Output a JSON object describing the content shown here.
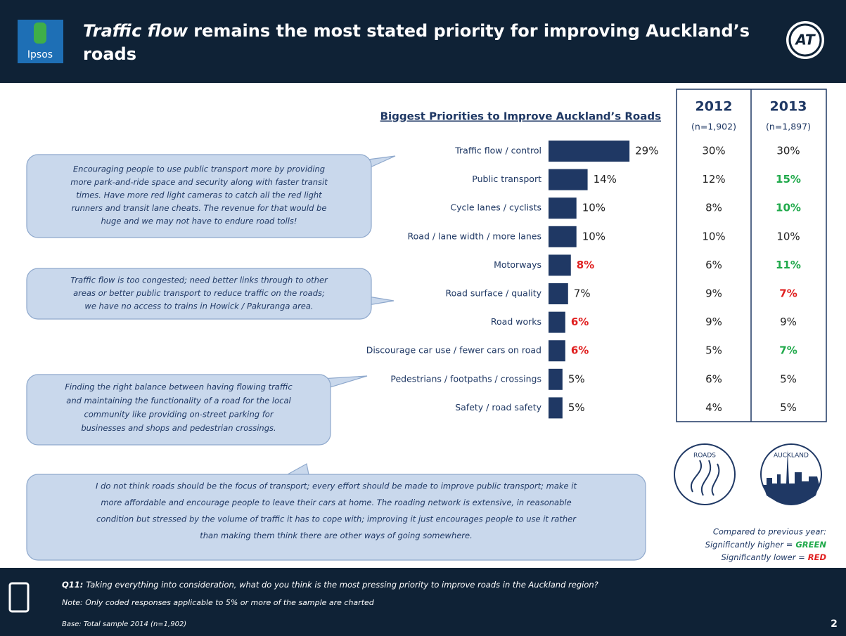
{
  "header": {
    "title_emphasis": "Traffic flow",
    "title_line1": "remains the most stated priority for improving Auckland’s",
    "title_line2": "roads",
    "logo": "Ipsos",
    "brand": "AT"
  },
  "chart_data": {
    "type": "bar",
    "orientation": "horizontal",
    "title": "Biggest Priorities to Improve Auckland’s Roads",
    "categories": [
      "Traffic flow / control",
      "Public transport",
      "Cycle lanes / cyclists",
      "Road / lane width / more lanes",
      "Motorways",
      "Road surface / quality",
      "Road works",
      "Discourage car use / fewer cars on road",
      "Pedestrians / footpaths / crossings",
      "Safety / road safety"
    ],
    "values": [
      29,
      14,
      10,
      10,
      8,
      7,
      6,
      6,
      5,
      5
    ],
    "value_labels": [
      "29%",
      "14%",
      "10%",
      "10%",
      "8%",
      "7%",
      "6%",
      "6%",
      "5%",
      "5%"
    ],
    "value_label_colors": [
      "#222222",
      "#222222",
      "#222222",
      "#222222",
      "#e02020",
      "#222222",
      "#e02020",
      "#e02020",
      "#222222",
      "#222222"
    ],
    "color": "#1f3864"
  },
  "table": {
    "columns": [
      {
        "year": "2012",
        "base": "(n=1,902)",
        "values": [
          "30%",
          "12%",
          "8%",
          "10%",
          "6%",
          "9%",
          "9%",
          "5%",
          "6%",
          "4%"
        ],
        "colors": [
          "#222222",
          "#222222",
          "#222222",
          "#222222",
          "#222222",
          "#222222",
          "#222222",
          "#222222",
          "#222222",
          "#222222"
        ]
      },
      {
        "year": "2013",
        "base": "(n=1,897)",
        "values": [
          "30%",
          "15%",
          "10%",
          "10%",
          "11%",
          "7%",
          "9%",
          "7%",
          "5%",
          "5%"
        ],
        "colors": [
          "#222222",
          "#1fa94a",
          "#1fa94a",
          "#222222",
          "#1fa94a",
          "#e02020",
          "#222222",
          "#1fa94a",
          "#222222",
          "#222222"
        ]
      }
    ]
  },
  "quotes": [
    {
      "lines": [
        "Encouraging people to use public transport more by providing",
        "more park-and-ride space and security along with faster transit",
        "times. Have more red light cameras to catch all the red light",
        "runners and transit lane cheats. The revenue for that would be",
        "huge and we may not have to endure road tolls!"
      ]
    },
    {
      "lines": [
        "Traffic flow is too congested; need better links through to other",
        "areas or better public transport to reduce traffic on the roads;",
        "we have no access to trains in Howick / Pakuranga area."
      ]
    },
    {
      "lines": [
        "Finding the right balance between having flowing traffic",
        "and maintaining the functionality of a road for the local",
        "community like providing on-street parking for",
        "businesses and shops and pedestrian crossings."
      ]
    },
    {
      "lines": [
        "I do not think roads should be the focus of transport; every effort should be made to improve public transport; make it",
        "more affordable and encourage people to leave their cars at home. The roading network is extensive, in reasonable",
        "condition but stressed by the volume of traffic it has to cope with; improving it just encourages people to use it rather",
        "than making them think there are other ways of going somewhere."
      ]
    }
  ],
  "icons": [
    "ROADS",
    "AUCKLAND"
  ],
  "legend": {
    "intro": "Compared to previous year:",
    "higher": "Significantly higher =",
    "higher_word": "GREEN",
    "lower": "Significantly lower =",
    "lower_word": "RED"
  },
  "footer": {
    "q_label": "Q11:",
    "q_text": "Taking everything into consideration, what do you think is the most pressing priority to improve roads in the Auckland region?",
    "note": "Note: Only coded responses applicable to 5% or more of the sample are charted",
    "base": "Base: Total sample 2014 (n=1,902)",
    "page": "2"
  }
}
